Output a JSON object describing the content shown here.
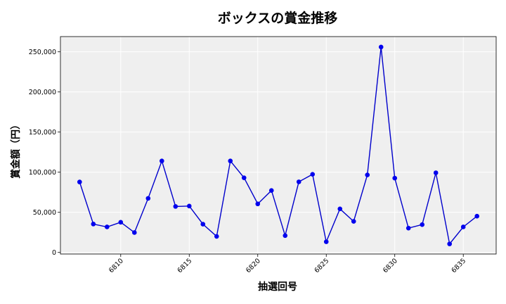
{
  "chart_data": {
    "type": "line",
    "title": "ボックスの賞金推移",
    "xlabel": "抽選回号",
    "ylabel": "賞金額（円）",
    "x": [
      6807,
      6808,
      6809,
      6810,
      6811,
      6812,
      6813,
      6814,
      6815,
      6816,
      6817,
      6818,
      6819,
      6820,
      6821,
      6822,
      6823,
      6824,
      6825,
      6826,
      6827,
      6828,
      6829,
      6830,
      6831,
      6832,
      6833,
      6834,
      6835,
      6836
    ],
    "series": [
      {
        "values": [
          87800,
          35400,
          31800,
          37600,
          24800,
          67400,
          114000,
          57300,
          57800,
          35200,
          20000,
          114000,
          93000,
          60500,
          77200,
          21000,
          88000,
          97400,
          13300,
          54300,
          38700,
          96600,
          256000,
          92600,
          30300,
          34700,
          99300,
          10600,
          31800,
          45200
        ]
      }
    ],
    "xticks": [
      6810,
      6815,
      6820,
      6825,
      6830,
      6835
    ],
    "yticks": [
      0,
      50000,
      100000,
      150000,
      200000,
      250000
    ],
    "xlim": [
      6805.6,
      6837.4
    ],
    "ylim": [
      -2000,
      269000
    ],
    "grid": true,
    "colors": {
      "line": "#0000cc",
      "marker": "#0000ee",
      "plot_bg": "#efefef",
      "grid": "#ffffff"
    }
  }
}
